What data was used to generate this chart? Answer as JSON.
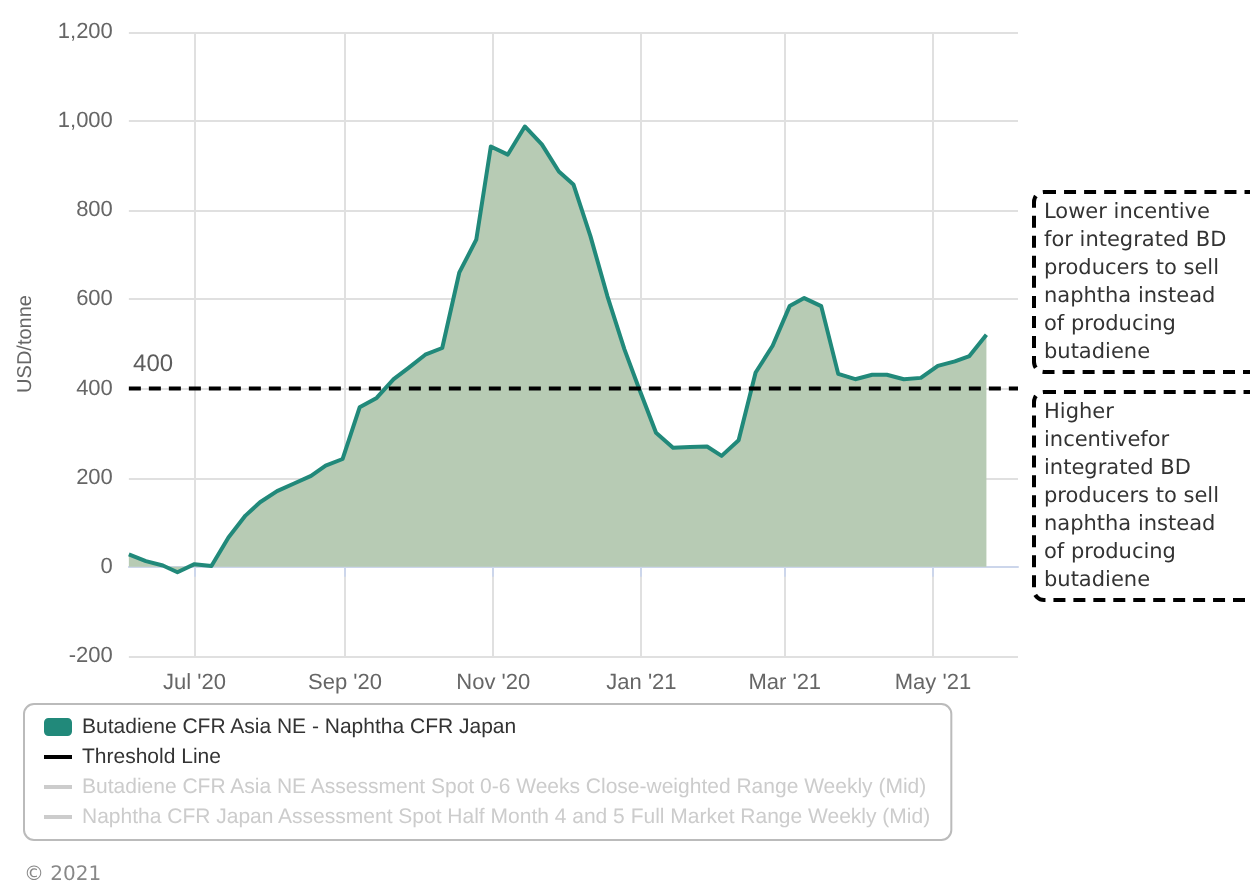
{
  "chart_data": {
    "type": "area",
    "ylabel": "USD/tonne",
    "x": [
      "2020-06-04",
      "2020-06-11",
      "2020-06-18",
      "2020-06-24",
      "2020-07-01",
      "2020-07-08",
      "2020-07-15",
      "2020-07-22",
      "2020-07-28",
      "2020-08-04",
      "2020-08-11",
      "2020-08-18",
      "2020-08-24",
      "2020-08-31",
      "2020-09-07",
      "2020-09-14",
      "2020-09-21",
      "2020-09-27",
      "2020-10-04",
      "2020-10-11",
      "2020-10-18",
      "2020-10-25",
      "2020-10-31",
      "2020-11-07",
      "2020-11-14",
      "2020-11-21",
      "2020-11-28",
      "2020-12-04",
      "2020-12-11",
      "2020-12-18",
      "2020-12-25",
      "2020-12-31",
      "2021-01-07",
      "2021-01-14",
      "2021-01-21",
      "2021-01-28",
      "2021-02-03",
      "2021-02-10",
      "2021-02-17",
      "2021-02-24",
      "2021-03-03",
      "2021-03-09",
      "2021-03-16",
      "2021-03-23",
      "2021-03-30",
      "2021-04-06",
      "2021-04-12",
      "2021-04-19",
      "2021-04-26",
      "2021-05-03",
      "2021-05-10",
      "2021-05-16",
      "2021-05-23"
    ],
    "series": [
      {
        "name": "Butadiene CFR Asia NE - Naphtha CFR Japan",
        "color": "#21897a",
        "values": [
          28,
          13,
          3,
          -12,
          6,
          2,
          66,
          115,
          145,
          170,
          187,
          204,
          227,
          242,
          358,
          379,
          421,
          446,
          476,
          491,
          660,
          734,
          943,
          925,
          988,
          948,
          887,
          858,
          742,
          607,
          488,
          400,
          301,
          267,
          269,
          270,
          249,
          284,
          436,
          496,
          585,
          603,
          585,
          433,
          421,
          431,
          431,
          421,
          424,
          451,
          461,
          473,
          521
        ]
      },
      {
        "name": "Threshold Line",
        "type": "line",
        "color": "#000000",
        "line_style": "dashed",
        "x": [
          "2020-06-04",
          "2021-06-05"
        ],
        "values": [
          400,
          400
        ]
      },
      {
        "name": "Butadiene CFR Asia NE Assessment Spot 0-6 Weeks Close-weighted Range Weekly (Mid)",
        "type": "line",
        "color": "#cccccc",
        "values": [
          null,
          null,
          null,
          null,
          null,
          null,
          null,
          null,
          null,
          null,
          null,
          null,
          null,
          null,
          null,
          null,
          null,
          null,
          null,
          null,
          null,
          null,
          null,
          null,
          null,
          null,
          null,
          null,
          null,
          null,
          null,
          null,
          null,
          null,
          null,
          null,
          null,
          null,
          null,
          null,
          null,
          null,
          null,
          null,
          null,
          null,
          null,
          null,
          null,
          null,
          null,
          null,
          null
        ]
      },
      {
        "name": "Naphtha CFR Japan Assessment Spot Half Month 4 and 5 Full Market Range Weekly (Mid)",
        "type": "line",
        "color": "#cccccc",
        "values": [
          null,
          null,
          null,
          null,
          null,
          null,
          null,
          null,
          null,
          null,
          null,
          null,
          null,
          null,
          null,
          null,
          null,
          null,
          null,
          null,
          null,
          null,
          null,
          null,
          null,
          null,
          null,
          null,
          null,
          null,
          null,
          null,
          null,
          null,
          null,
          null,
          null,
          null,
          null,
          null,
          null,
          null,
          null,
          null,
          null,
          null,
          null,
          null,
          null,
          null,
          null,
          null,
          null
        ]
      }
    ],
    "xlim": [
      "2020-06-04",
      "2021-06-05"
    ],
    "xticks": [
      {
        "value": "2020-07-01",
        "label": "Jul '20"
      },
      {
        "value": "2020-09-01",
        "label": "Sep '20"
      },
      {
        "value": "2020-11-01",
        "label": "Nov '20"
      },
      {
        "value": "2021-01-01",
        "label": "Jan '21"
      },
      {
        "value": "2021-03-01",
        "label": "Mar '21"
      },
      {
        "value": "2021-05-01",
        "label": "May '21"
      }
    ],
    "ylim": [
      -200,
      1200
    ],
    "yticks": [
      -200,
      0,
      200,
      400,
      600,
      800,
      {
        "value": 1000,
        "label": "1,000"
      },
      {
        "value": 1200,
        "label": "1,200"
      }
    ],
    "annotations": [
      {
        "text": "400",
        "x": "2020-06-14",
        "y": 400
      },
      "Lower incentive for integrated BD producers to sell naphtha instead of producing butadiene",
      "Higher incentivefor integrated BD producers to sell naphtha instead of producing butadiene",
      "© 2021"
    ],
    "grid": true,
    "legend": "bottom left",
    "marker": "none"
  }
}
